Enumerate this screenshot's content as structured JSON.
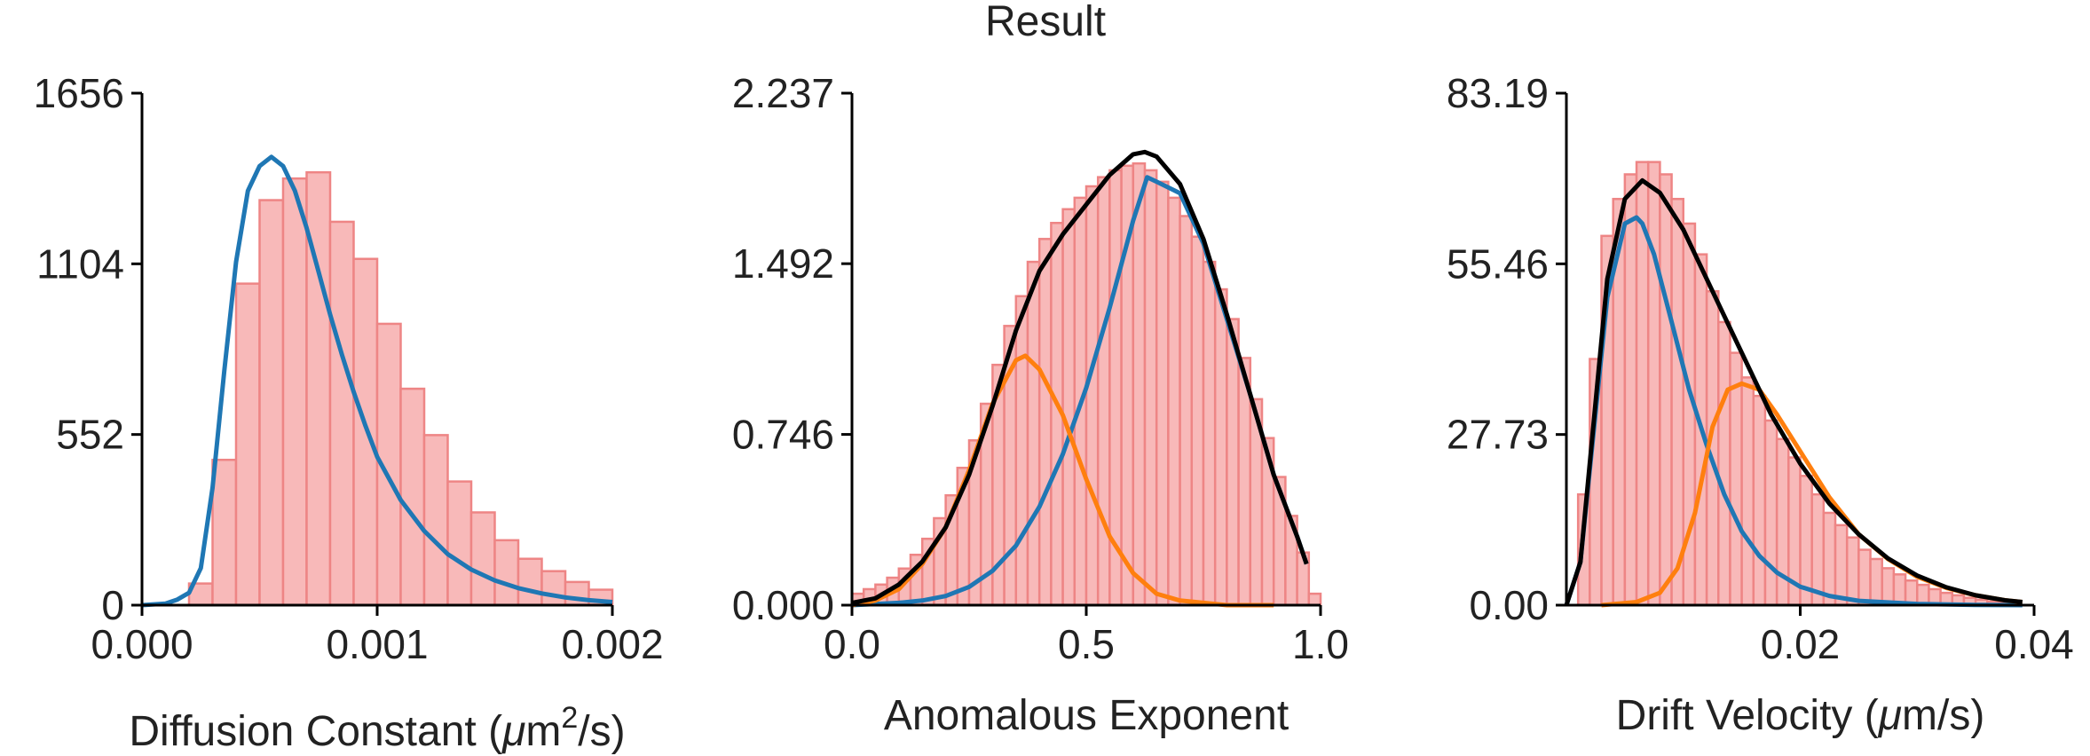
{
  "figure": {
    "title": "Result"
  },
  "colors": {
    "bar_fill": "#f8b9b9",
    "bar_edge": "#ee8585",
    "fit_total": "#000000",
    "fit_component_1": "#1f77b4",
    "fit_component_2": "#ff7f0e",
    "axis": "#000000",
    "text": "#222222"
  },
  "chart_data": [
    {
      "type": "bar",
      "title": "",
      "xlabel": "Diffusion Constant",
      "xlabel_units": {
        "open": " (",
        "mu": "μ",
        "m": "m",
        "sup": "2",
        "rest": "/s)"
      },
      "ylabel": "",
      "xlim": [
        0,
        0.002
      ],
      "ylim": [
        0,
        1656
      ],
      "xticks": [
        0,
        0.001,
        0.002
      ],
      "xtick_labels": [
        "0.000",
        "0.001",
        "0.002"
      ],
      "yticks": [
        0,
        552,
        1104,
        1656
      ],
      "ytick_labels": [
        "0",
        "552",
        "1104",
        "1656"
      ],
      "bin_width": 0.0001,
      "bins_x": [
        0.00025,
        0.00035,
        0.00045,
        0.00055,
        0.00065,
        0.00075,
        0.00085,
        0.00095,
        0.00105,
        0.00115,
        0.00125,
        0.00135,
        0.00145,
        0.00155,
        0.00165,
        0.00175,
        0.00185,
        0.00195
      ],
      "values": [
        70,
        470,
        1040,
        1310,
        1380,
        1400,
        1240,
        1120,
        910,
        700,
        550,
        400,
        300,
        210,
        150,
        110,
        75,
        50
      ],
      "series": [
        {
          "name": "fit 1",
          "color_key": "fit_component_1",
          "x": [
            0,
            0.0001,
            0.00015,
            0.0002,
            0.00025,
            0.0003,
            0.00035,
            0.0004,
            0.00045,
            0.0005,
            0.00055,
            0.0006,
            0.00065,
            0.0007,
            0.00075,
            0.0008,
            0.00085,
            0.0009,
            0.00095,
            0.001,
            0.0011,
            0.0012,
            0.0013,
            0.0014,
            0.0015,
            0.0016,
            0.0017,
            0.0018,
            0.0019,
            0.002
          ],
          "y": [
            0,
            5,
            18,
            40,
            120,
            380,
            760,
            1110,
            1340,
            1420,
            1450,
            1420,
            1340,
            1220,
            1080,
            940,
            810,
            690,
            580,
            480,
            340,
            240,
            165,
            115,
            80,
            55,
            38,
            25,
            16,
            10
          ]
        }
      ]
    },
    {
      "type": "bar",
      "title": "",
      "xlabel": "Anomalous Exponent",
      "ylabel": "",
      "xlim": [
        0,
        1
      ],
      "ylim": [
        0,
        2.237
      ],
      "xticks": [
        0,
        0.5,
        1
      ],
      "xtick_labels": [
        "0.0",
        "0.5",
        "1.0"
      ],
      "yticks": [
        0,
        0.746,
        1.492,
        2.237
      ],
      "ytick_labels": [
        "0.000",
        "0.746",
        "1.492",
        "2.237"
      ],
      "bin_width": 0.025,
      "bins_x": [
        0.0125,
        0.0375,
        0.0625,
        0.0875,
        0.1125,
        0.1375,
        0.1625,
        0.1875,
        0.2125,
        0.2375,
        0.2625,
        0.2875,
        0.3125,
        0.3375,
        0.3625,
        0.3875,
        0.4125,
        0.4375,
        0.4625,
        0.4875,
        0.5125,
        0.5375,
        0.5625,
        0.5875,
        0.6125,
        0.6375,
        0.6625,
        0.6875,
        0.7125,
        0.7375,
        0.7625,
        0.7875,
        0.8125,
        0.8375,
        0.8625,
        0.8875,
        0.9125,
        0.9375,
        0.9625,
        0.9875
      ],
      "values": [
        0.05,
        0.07,
        0.09,
        0.12,
        0.16,
        0.22,
        0.29,
        0.38,
        0.48,
        0.6,
        0.72,
        0.88,
        1.05,
        1.22,
        1.35,
        1.5,
        1.6,
        1.67,
        1.73,
        1.78,
        1.83,
        1.87,
        1.9,
        1.92,
        1.93,
        1.9,
        1.85,
        1.78,
        1.7,
        1.61,
        1.5,
        1.38,
        1.25,
        1.08,
        0.9,
        0.73,
        0.56,
        0.39,
        0.23,
        0.05
      ],
      "series": [
        {
          "name": "fit total",
          "color_key": "fit_total",
          "x": [
            0,
            0.05,
            0.1,
            0.15,
            0.2,
            0.25,
            0.3,
            0.35,
            0.4,
            0.45,
            0.5,
            0.55,
            0.6,
            0.625,
            0.65,
            0.7,
            0.75,
            0.8,
            0.85,
            0.9,
            0.95,
            0.97
          ],
          "y": [
            0.01,
            0.03,
            0.09,
            0.19,
            0.34,
            0.57,
            0.87,
            1.2,
            1.46,
            1.62,
            1.75,
            1.88,
            1.97,
            1.98,
            1.96,
            1.84,
            1.6,
            1.27,
            0.92,
            0.57,
            0.3,
            0.18
          ]
        },
        {
          "name": "fit 1",
          "color_key": "fit_component_1",
          "x": [
            0,
            0.1,
            0.15,
            0.2,
            0.25,
            0.3,
            0.35,
            0.4,
            0.45,
            0.5,
            0.55,
            0.6,
            0.63,
            0.65,
            0.7,
            0.75,
            0.8,
            0.85,
            0.9,
            0.95,
            0.97
          ],
          "y": [
            0,
            0.01,
            0.02,
            0.04,
            0.08,
            0.15,
            0.26,
            0.43,
            0.66,
            0.95,
            1.3,
            1.68,
            1.87,
            1.85,
            1.8,
            1.58,
            1.25,
            0.92,
            0.57,
            0.3,
            0.18
          ]
        },
        {
          "name": "fit 2",
          "color_key": "fit_component_2",
          "x": [
            0,
            0.05,
            0.1,
            0.15,
            0.2,
            0.25,
            0.3,
            0.35,
            0.37,
            0.4,
            0.45,
            0.5,
            0.55,
            0.6,
            0.65,
            0.7,
            0.75,
            0.8,
            0.85,
            0.9
          ],
          "y": [
            0,
            0.02,
            0.07,
            0.18,
            0.34,
            0.59,
            0.88,
            1.07,
            1.09,
            1.03,
            0.83,
            0.55,
            0.3,
            0.14,
            0.05,
            0.02,
            0.01,
            0,
            0,
            0
          ]
        }
      ]
    },
    {
      "type": "bar",
      "title": "",
      "xlabel": "Drift Velocity",
      "xlabel_units": {
        "open": " (",
        "mu": "μ",
        "rest": "m/s)"
      },
      "ylabel": "",
      "xlim": [
        0,
        0.04
      ],
      "ylim": [
        0,
        83.19
      ],
      "xticks": [
        0.02,
        0.04
      ],
      "xtick_labels": [
        "0.02",
        "0.04"
      ],
      "yticks": [
        0,
        27.73,
        55.46,
        83.19
      ],
      "ytick_labels": [
        "0.00",
        "27.73",
        "55.46",
        "83.19"
      ],
      "bin_width": 0.001,
      "bins_x": [
        0.0015,
        0.0025,
        0.0035,
        0.0045,
        0.0055,
        0.0065,
        0.0075,
        0.0085,
        0.0095,
        0.0105,
        0.0115,
        0.0125,
        0.0135,
        0.0145,
        0.0155,
        0.0165,
        0.0175,
        0.0185,
        0.0195,
        0.0205,
        0.0215,
        0.0225,
        0.0235,
        0.0245,
        0.0255,
        0.0265,
        0.0275,
        0.0285,
        0.0295,
        0.0305,
        0.0315,
        0.0325,
        0.0335,
        0.0345,
        0.0355,
        0.0365,
        0.0375
      ],
      "values": [
        18,
        40,
        60,
        66,
        70,
        72,
        72,
        70,
        66,
        62,
        57,
        51,
        46,
        41,
        37,
        34,
        30,
        27,
        24,
        21,
        18,
        15,
        13,
        11,
        9,
        7.5,
        6,
        5,
        4,
        3.3,
        2.6,
        2,
        1.6,
        1.2,
        0.9,
        0.6,
        0.4
      ],
      "series": [
        {
          "name": "fit total",
          "color_key": "fit_total",
          "x": [
            0,
            0.0012,
            0.0035,
            0.005,
            0.0065,
            0.008,
            0.01,
            0.0125,
            0.015,
            0.0175,
            0.02,
            0.0225,
            0.025,
            0.0275,
            0.03,
            0.0325,
            0.035,
            0.0375,
            0.039
          ],
          "y": [
            0,
            7,
            53,
            66,
            69,
            67,
            61,
            51,
            41,
            31,
            23,
            16.5,
            11.5,
            7.6,
            4.8,
            2.9,
            1.6,
            0.8,
            0.5
          ]
        },
        {
          "name": "fit 1",
          "color_key": "fit_component_1",
          "x": [
            0,
            0.0012,
            0.0035,
            0.005,
            0.006,
            0.0065,
            0.0075,
            0.009,
            0.0105,
            0.012,
            0.0135,
            0.015,
            0.0165,
            0.018,
            0.02,
            0.0225,
            0.025,
            0.03,
            0.035,
            0.039
          ],
          "y": [
            0,
            7,
            50,
            62,
            63,
            62,
            57,
            46,
            35,
            26,
            18,
            12,
            8,
            5.3,
            3,
            1.5,
            0.7,
            0.2,
            0.05,
            0
          ]
        },
        {
          "name": "fit 2",
          "color_key": "fit_component_2",
          "x": [
            0.003,
            0.006,
            0.008,
            0.0095,
            0.011,
            0.0125,
            0.0138,
            0.015,
            0.0165,
            0.018,
            0.02,
            0.0225,
            0.025,
            0.0275,
            0.03,
            0.0325,
            0.035,
            0.0375,
            0.039
          ],
          "y": [
            0,
            0.5,
            2,
            6,
            15,
            29,
            35,
            36,
            35,
            31,
            25,
            17.5,
            11.5,
            7.5,
            4.6,
            2.8,
            1.6,
            0.8,
            0.5
          ]
        }
      ]
    }
  ]
}
